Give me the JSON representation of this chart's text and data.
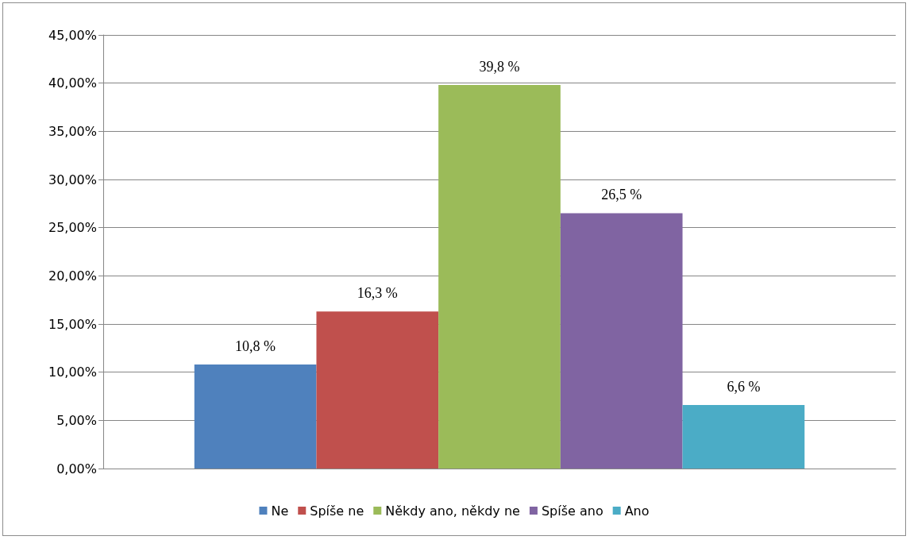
{
  "chart_data": {
    "type": "bar",
    "categories": [
      null
    ],
    "series": [
      {
        "name": "Ne",
        "color": "#4f81bd",
        "values": [
          10.8
        ],
        "value_labels": [
          "10,8 %"
        ]
      },
      {
        "name": "Spíše ne",
        "color": "#c0504d",
        "values": [
          16.3
        ],
        "value_labels": [
          "16,3 %"
        ]
      },
      {
        "name": "Někdy ano, někdy ne",
        "color": "#9bbb59",
        "values": [
          39.8
        ],
        "value_labels": [
          "39,8 %"
        ]
      },
      {
        "name": "Spíše ano",
        "color": "#8064a2",
        "values": [
          26.5
        ],
        "value_labels": [
          "26,5 %"
        ]
      },
      {
        "name": "Ano",
        "color": "#4bacc6",
        "values": [
          6.6
        ],
        "value_labels": [
          "6,6 %"
        ]
      }
    ],
    "ylim": [
      0,
      45
    ],
    "yticks": [
      {
        "value": 0,
        "label": "0,00%"
      },
      {
        "value": 5,
        "label": "5,00%"
      },
      {
        "value": 10,
        "label": "10,00%"
      },
      {
        "value": 15,
        "label": "15,00%"
      },
      {
        "value": 20,
        "label": "20,00%"
      },
      {
        "value": 25,
        "label": "25,00%"
      },
      {
        "value": 30,
        "label": "30,00%"
      },
      {
        "value": 35,
        "label": "35,00%"
      },
      {
        "value": 40,
        "label": "40,00%"
      },
      {
        "value": 45,
        "label": "45,00%"
      }
    ],
    "grid": "y",
    "legend": "bottom"
  }
}
